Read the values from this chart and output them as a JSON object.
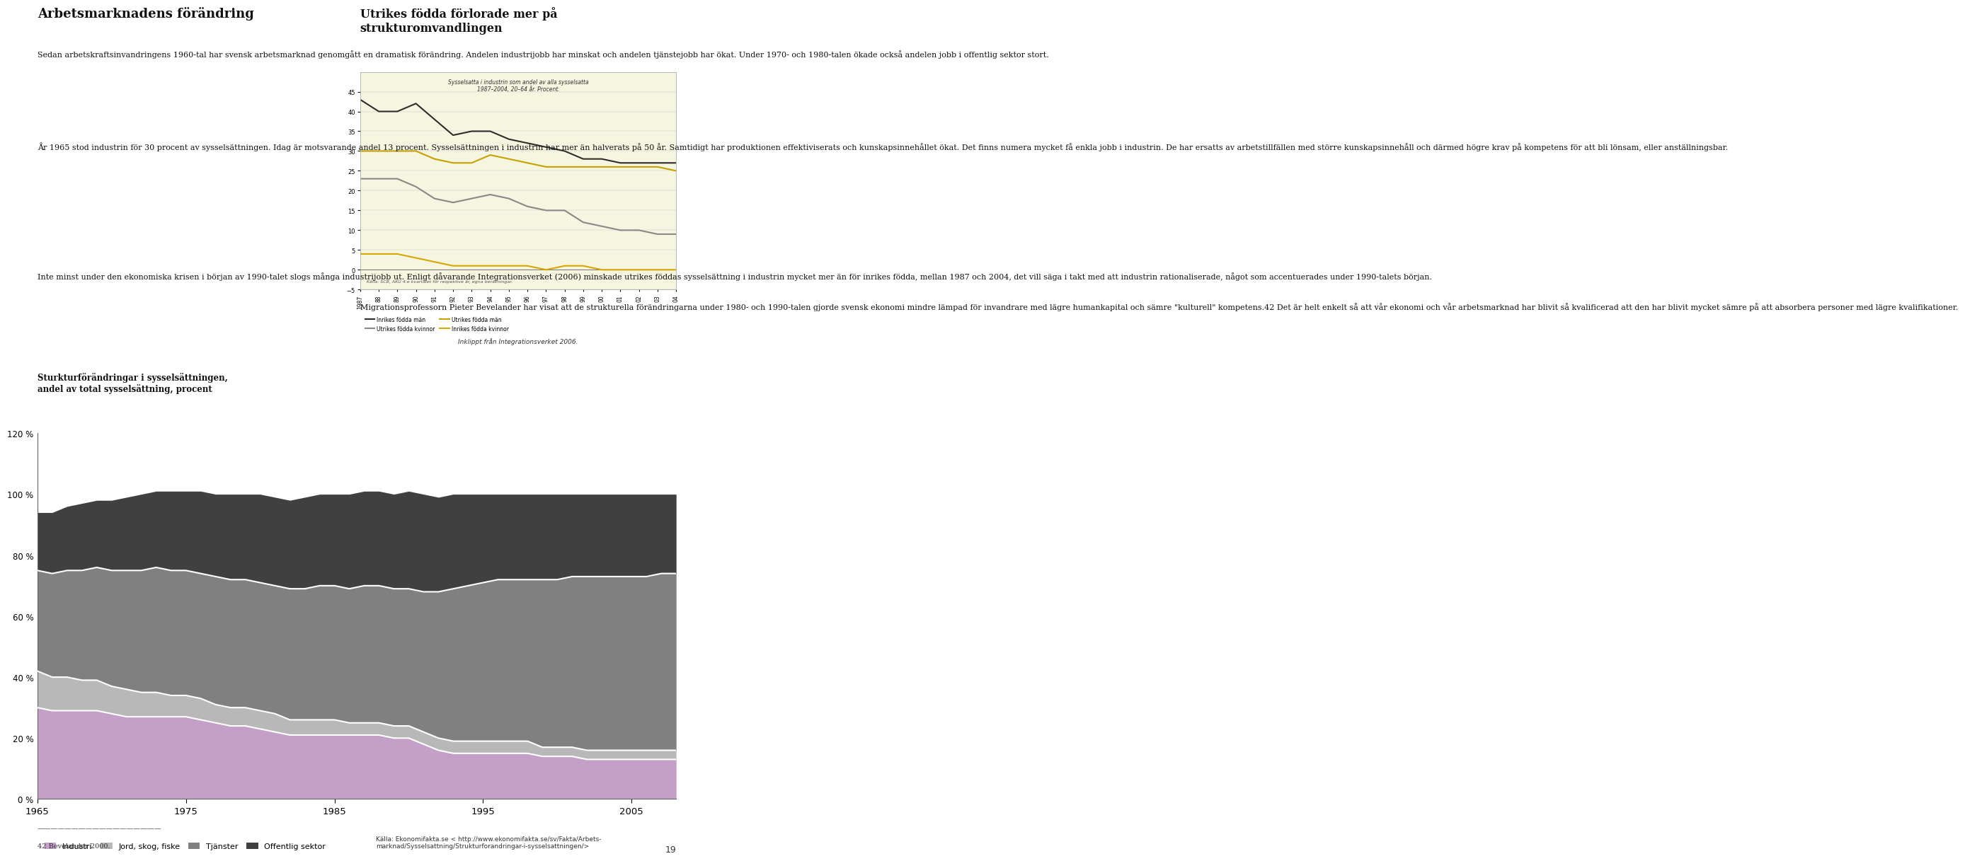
{
  "page_bg": "#ffffff",
  "title_left": "Arbetsmarknadens förändring",
  "title_right": "Utrikes födda förlorade mer på\nstrukturomvandlingen",
  "line_chart_subtitle": "Sysselsatta i industrin som andel av alla sysselsatta\n1987–2004, 20–64 år. Procent.",
  "line_chart_caption": "Inklippt från Integrationsverket 2006.",
  "line_chart_source": "Källa: SCB, AKU 4:e kvartalet för respektive år, egna beräkningar.",
  "line_years": [
    1987,
    1988,
    1989,
    1990,
    1991,
    1992,
    1993,
    1994,
    1995,
    1996,
    1997,
    1998,
    1999,
    2000,
    2001,
    2002,
    2003,
    2004
  ],
  "line_inrikes_man": [
    43,
    40,
    40,
    42,
    38,
    34,
    35,
    35,
    33,
    32,
    31,
    30,
    28,
    28,
    27,
    27,
    27,
    27
  ],
  "line_utrikes_man": [
    30,
    30,
    30,
    30,
    28,
    27,
    27,
    29,
    28,
    27,
    26,
    26,
    26,
    26,
    26,
    26,
    26,
    25
  ],
  "line_utrikes_kv": [
    23,
    23,
    23,
    21,
    18,
    17,
    18,
    19,
    18,
    16,
    15,
    15,
    12,
    11,
    10,
    10,
    9,
    9
  ],
  "line_inrikes_kv": [
    4,
    4,
    4,
    3,
    2,
    1,
    1,
    1,
    1,
    1,
    0,
    1,
    1,
    0,
    0,
    0,
    0,
    0
  ],
  "line_color_im": "#2d2d2d",
  "line_color_um": "#c8a000",
  "line_color_uk": "#888888",
  "line_color_ik": "#d4a800",
  "line_label_im": "Inrikes födda män",
  "line_label_um": "Utrikes födda män",
  "line_label_uk": "Utrikes födda kvinnor",
  "line_label_ik": "Inrikes födda kvinnor",
  "line_ylim": [
    -5,
    50
  ],
  "line_yticks": [
    -5,
    0,
    5,
    10,
    15,
    20,
    25,
    30,
    35,
    40,
    45
  ],
  "area_years": [
    1965,
    1966,
    1967,
    1968,
    1969,
    1970,
    1971,
    1972,
    1973,
    1974,
    1975,
    1976,
    1977,
    1978,
    1979,
    1980,
    1981,
    1982,
    1983,
    1984,
    1985,
    1986,
    1987,
    1988,
    1989,
    1990,
    1991,
    1992,
    1993,
    1994,
    1995,
    1996,
    1997,
    1998,
    1999,
    2000,
    2001,
    2002,
    2003,
    2004,
    2005,
    2006,
    2007,
    2008
  ],
  "industri": [
    30,
    29,
    29,
    29,
    29,
    28,
    27,
    27,
    27,
    27,
    27,
    26,
    25,
    24,
    24,
    23,
    22,
    21,
    21,
    21,
    21,
    21,
    21,
    21,
    20,
    20,
    18,
    16,
    15,
    15,
    15,
    15,
    15,
    15,
    14,
    14,
    14,
    13,
    13,
    13,
    13,
    13,
    13,
    13
  ],
  "jord_skog": [
    12,
    11,
    11,
    10,
    10,
    9,
    9,
    8,
    8,
    7,
    7,
    7,
    6,
    6,
    6,
    6,
    6,
    5,
    5,
    5,
    5,
    4,
    4,
    4,
    4,
    4,
    4,
    4,
    4,
    4,
    4,
    4,
    4,
    4,
    3,
    3,
    3,
    3,
    3,
    3,
    3,
    3,
    3,
    3
  ],
  "tjanster": [
    33,
    34,
    35,
    36,
    37,
    38,
    39,
    40,
    41,
    41,
    41,
    41,
    42,
    42,
    42,
    42,
    42,
    43,
    43,
    44,
    44,
    44,
    45,
    45,
    45,
    45,
    46,
    48,
    50,
    51,
    52,
    53,
    53,
    53,
    55,
    55,
    56,
    57,
    57,
    57,
    57,
    57,
    58,
    58
  ],
  "offentlig": [
    19,
    20,
    21,
    22,
    22,
    23,
    24,
    25,
    25,
    26,
    26,
    27,
    27,
    28,
    28,
    29,
    29,
    29,
    30,
    30,
    30,
    31,
    31,
    31,
    31,
    32,
    32,
    31,
    31,
    30,
    29,
    28,
    28,
    28,
    28,
    28,
    27,
    27,
    27,
    27,
    27,
    27,
    26,
    26
  ],
  "color_industri": "#c4a0c8",
  "color_jord": "#b8b8b8",
  "color_tjanster": "#808080",
  "color_offentlig": "#404040",
  "area_yticks": [
    0,
    20,
    40,
    60,
    80,
    100,
    120
  ],
  "area_ytick_labels": [
    "0 %",
    "20 %",
    "40 %",
    "60 %",
    "80 %",
    "100 %",
    "120 %"
  ],
  "area_xticks": [
    1965,
    1975,
    1985,
    1995,
    2005
  ],
  "source_area": "Källa: Ekonomifakta.se < http://www.ekonomifakta.se/sv/Fakta/Arbets-\nmarknad/Sysselsattning/Strukturforandringar-i-sysselsattningen/>",
  "footnote": "42 Bevelander 2000.",
  "page_number": "19",
  "right_body": "Migrationsprofessorn Pieter Bevelander har visat att de strukturella förändringarna under 1980- och 1990-talen gjorde svensk ekonomi mindre lämpad för invandrare med lägre humankapital och sämre \"kulturell\" kompetens.42 Det är helt enkelt så att vår ekonomi och vår arbetsmarknad har blivit så kvalificerad att den har blivit mycket sämre på att absorbera personer med lägre kvalifikationer.",
  "para1": "Sedan arbetskraftsinvandringens 1960-tal har svensk arbetsmarknad genomgått en dramatisk förändring. Andelen industrijobb har minskat och andelen tjänstejobb har ökat. Under 1970- och 1980-talen ökade också andelen jobb i offentlig sektor stort.",
  "para2": "År 1965 stod industrin för 30 procent av sysselsättningen. Idag är motsvarande andel 13 procent. Sysselsättningen i industrin har mer än halverats på 50 år. Samtidigt har produktionen effektiviserats och kunskapsinnehållet ökat. Det finns numera mycket få enkla jobb i industrin. De har ersatts av arbetstillfällen med större kunskapsinnehåll och därmed högre krav på kompetens för att bli lönsam, eller anställningsbar.",
  "para3": "Inte minst under den ekonomiska krisen i början av 1990-talet slogs många industrijobb ut. Enligt dåvarande Integrationsverket (2006) minskade utrikes föddas sysselsättning i industrin mycket mer än för inrikes födda, mellan 1987 och 2004, det vill säga i takt med att industrin rationaliserade, något som accentuerades under 1990-talets början.",
  "subtitle_area": "Sturkturförändringar i sysselsättningen,\nandel av total sysselsättning, procent"
}
